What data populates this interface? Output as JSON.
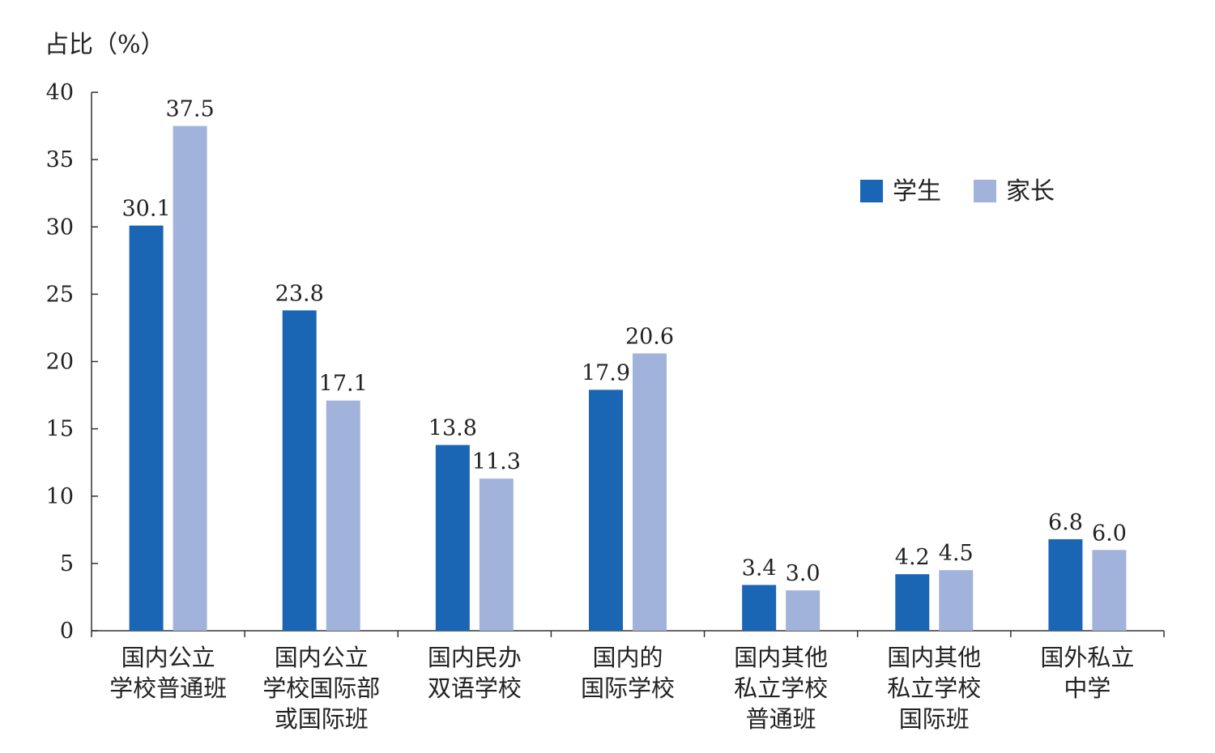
{
  "chart_data": {
    "type": "bar",
    "ylabel": "占比（%）",
    "ylim": [
      0,
      40
    ],
    "yticks": [
      0,
      5,
      10,
      15,
      20,
      25,
      30,
      35,
      40
    ],
    "categories": [
      [
        "国内公立",
        "学校普通班"
      ],
      [
        "国内公立",
        "学校国际部",
        "或国际班"
      ],
      [
        "国内民办",
        "双语学校"
      ],
      [
        "国内的",
        "国际学校"
      ],
      [
        "国内其他",
        "私立学校",
        "普通班"
      ],
      [
        "国内其他",
        "私立学校",
        "国际班"
      ],
      [
        "国外私立",
        "中学"
      ]
    ],
    "series": [
      {
        "name": "学生",
        "color": "#1a66b5",
        "values": [
          30.1,
          23.8,
          13.8,
          17.9,
          3.4,
          4.2,
          6.8
        ]
      },
      {
        "name": "家长",
        "color": "#a1b3db",
        "values": [
          37.5,
          17.1,
          11.3,
          20.6,
          3.0,
          4.5,
          6.0
        ]
      }
    ],
    "legend_position": "top-right",
    "grid": false
  }
}
